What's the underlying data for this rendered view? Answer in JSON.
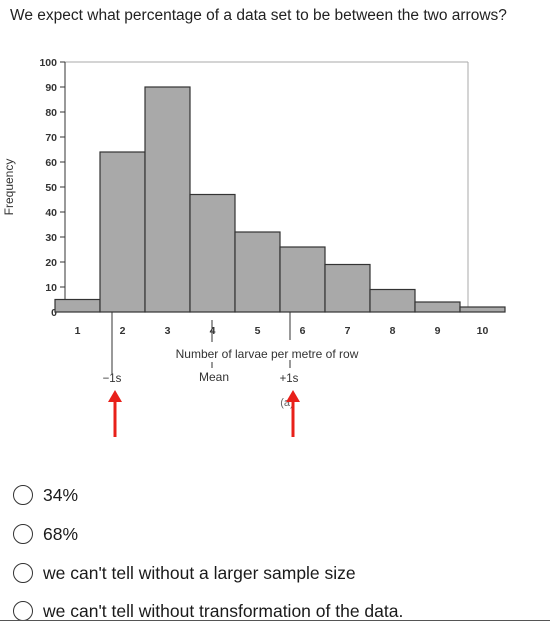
{
  "question": "We expect what percentage of a data set to be between the two arrows?",
  "options": [
    "34%",
    "68%",
    "we can't tell without a larger sample size",
    "we can't tell without transformation of the data."
  ],
  "chart_data": {
    "type": "bar",
    "title": "",
    "xlabel": "Number of larvae per metre of row",
    "ylabel": "Frequency",
    "categories": [
      "1",
      "2",
      "3",
      "4",
      "5",
      "6",
      "7",
      "8",
      "9",
      "10"
    ],
    "values": [
      5,
      64,
      90,
      47,
      32,
      26,
      19,
      9,
      4,
      2
    ],
    "ylim": [
      0,
      100
    ],
    "yticks": [
      0,
      10,
      20,
      30,
      40,
      50,
      60,
      70,
      80,
      90,
      100
    ],
    "annotations": {
      "minus_s": "−1s",
      "mean": "Mean",
      "plus_s": "+1s",
      "panel": "(a)"
    },
    "arrow_color": "#e8201a",
    "bar_color": "#a9a9a9"
  }
}
